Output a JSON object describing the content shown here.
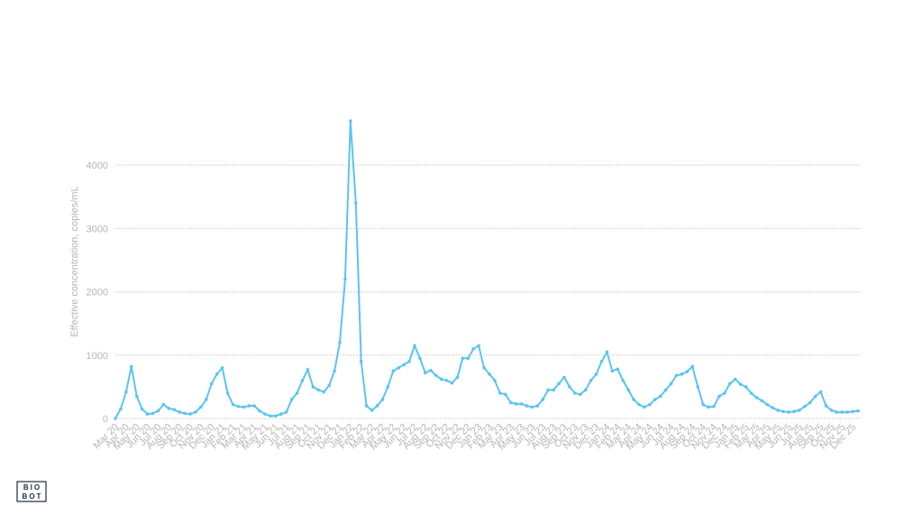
{
  "chart_data": {
    "type": "line",
    "y_label": "Effective concentration, copies/mL",
    "categories": [
      "Mar 20",
      null,
      "Apr 20",
      null,
      "May 20",
      null,
      "Jun 20",
      null,
      "Jul 20",
      null,
      "Aug 20",
      null,
      "Sep 20",
      null,
      "Oct 20",
      null,
      "Nov 20",
      null,
      "Dec 20",
      null,
      "Jan 21",
      null,
      "Feb 21",
      null,
      "Mar 21",
      null,
      "Apr 21",
      null,
      "May 21",
      null,
      "Jun 21",
      null,
      "Jul 21",
      null,
      "Aug 21",
      null,
      "Sep 21",
      null,
      "Oct 21",
      null,
      "Nov 21",
      null,
      "Dec 21",
      null,
      "Jan 22",
      null,
      "Feb 22",
      null,
      "Mar 22",
      null,
      "Apr 22",
      null,
      "May 22",
      null,
      "Jun 22",
      null,
      "Jul 22",
      null,
      "Aug 22",
      null,
      "Sep 22",
      null,
      "Oct 22",
      null,
      "Nov 22",
      null,
      "Dec 22",
      null,
      "Jan 23",
      null,
      "Feb 23",
      null,
      "Mar 23",
      null,
      "Apr 23",
      null,
      "May 23",
      null,
      "Jun 23",
      null,
      "Jul 23",
      null,
      "Aug 23",
      null,
      "Sep 23",
      null,
      "Oct 23",
      null,
      "Nov 23",
      null,
      "Dec 23",
      null,
      "Jan 24",
      null,
      "Feb 24",
      null,
      "Mar 24",
      null,
      "Apr 24",
      null,
      "May 24",
      null,
      "Jun 24",
      null,
      "Jul 24",
      null,
      "Aug 24",
      null,
      "Sep 24",
      null,
      "Oct 24",
      null,
      "Nov 24",
      null,
      "Dec 24",
      null,
      "Jan 25",
      null,
      "Feb 25",
      null,
      "Mar 25",
      null,
      "Apr 25",
      null,
      "May 25",
      null,
      "Jun 25",
      null,
      "Jul 25",
      null,
      "Aug 25",
      null,
      "Sep 25",
      null,
      "Oct 25",
      null,
      "Nov 25",
      null,
      "Dec 25",
      null
    ],
    "values": [
      0,
      150,
      420,
      820,
      350,
      150,
      70,
      80,
      120,
      220,
      160,
      140,
      100,
      80,
      70,
      100,
      180,
      300,
      550,
      700,
      800,
      400,
      220,
      190,
      180,
      200,
      200,
      120,
      70,
      40,
      40,
      70,
      100,
      300,
      400,
      600,
      770,
      500,
      450,
      420,
      520,
      750,
      1200,
      2200,
      4700,
      3400,
      900,
      200,
      130,
      200,
      300,
      500,
      750,
      800,
      850,
      900,
      1150,
      950,
      720,
      760,
      680,
      620,
      600,
      560,
      650,
      950,
      950,
      1100,
      1150,
      800,
      700,
      600,
      400,
      380,
      250,
      230,
      230,
      200,
      180,
      200,
      300,
      450,
      450,
      550,
      650,
      500,
      400,
      380,
      450,
      600,
      700,
      900,
      1050,
      750,
      780,
      600,
      450,
      300,
      220,
      180,
      220,
      300,
      350,
      450,
      550,
      680,
      700,
      740,
      820,
      500,
      220,
      180,
      190,
      350,
      400,
      550,
      620,
      540,
      500,
      400,
      330,
      280,
      220,
      170,
      130,
      110,
      100,
      110,
      130,
      190,
      250,
      350,
      420,
      200,
      130,
      100,
      100,
      100,
      110,
      120
    ],
    "color": "#5bc4f1",
    "ylim": [
      0,
      4800
    ],
    "yticks": [
      0,
      1000,
      2000,
      3000,
      4000
    ],
    "grid": true
  },
  "logo": [
    "BIO",
    "BOT"
  ]
}
